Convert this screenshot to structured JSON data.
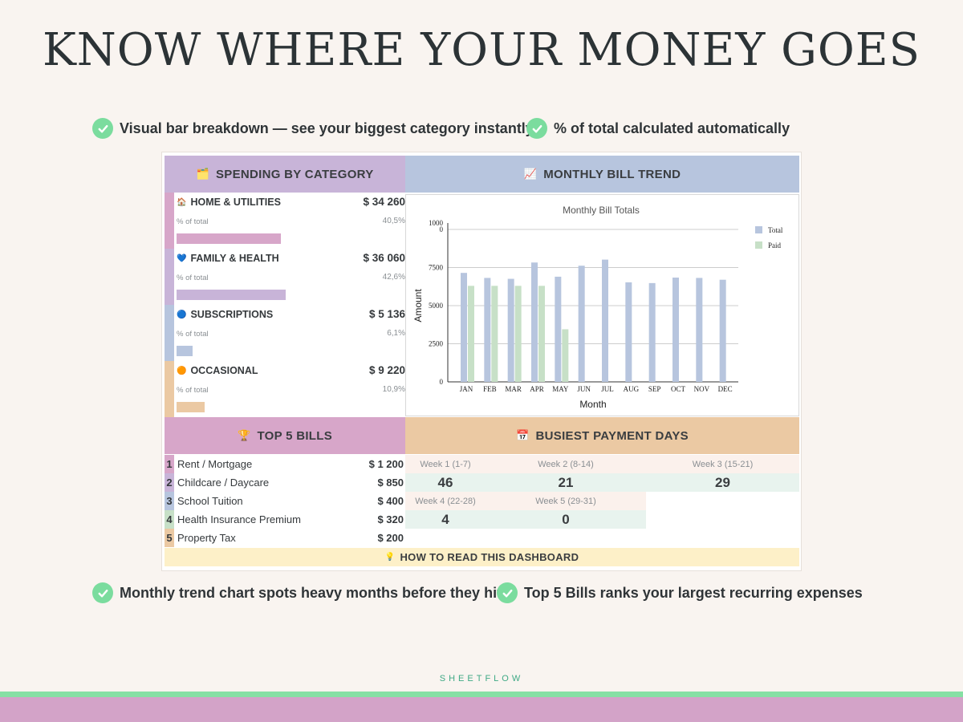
{
  "headline": "KNOW WHERE YOUR MONEY GOES",
  "features": {
    "top_left": "Visual bar breakdown — see your biggest category instantly",
    "top_right": "% of total calculated automatically",
    "bottom_left": "Monthly trend chart spots heavy months before they hit",
    "bottom_right": "Top 5 Bills ranks your largest recurring expenses"
  },
  "sections": {
    "spending": {
      "title": "SPENDING BY CATEGORY",
      "emoji": "🗂️",
      "color": "#c8b4d8"
    },
    "trend": {
      "title": "MONTHLY BILL TREND",
      "emoji": "📈",
      "color": "#b7c5de"
    },
    "top5": {
      "title": "TOP 5 BILLS",
      "emoji": "🏆",
      "color": "#d7a6c9"
    },
    "busiest": {
      "title": "BUSIEST PAYMENT DAYS",
      "emoji": "📅",
      "color": "#ebc9a3"
    }
  },
  "categories": [
    {
      "name": "HOME & UTILITIES",
      "emoji": "🏠",
      "amount": "$ 34 260",
      "pct_label": "% of total",
      "pct": "40,5%",
      "share": 40.5,
      "color": "#d7a6c9"
    },
    {
      "name": "FAMILY & HEALTH",
      "emoji": "💙",
      "amount": "$ 36 060",
      "pct_label": "% of total",
      "pct": "42,6%",
      "share": 42.6,
      "color": "#c8b4d8"
    },
    {
      "name": "SUBSCRIPTIONS",
      "emoji": "🔵",
      "amount": "$ 5 136",
      "pct_label": "% of total",
      "pct": "6,1%",
      "share": 6.1,
      "color": "#b7c5de"
    },
    {
      "name": "OCCASIONAL",
      "emoji": "🟠",
      "amount": "$ 9 220",
      "pct_label": "% of total",
      "pct": "10,9%",
      "share": 10.9,
      "color": "#ebc9a3"
    }
  ],
  "chart_data": {
    "type": "bar",
    "title": "Monthly Bill Totals",
    "xlabel": "Month",
    "ylabel": "Amount",
    "categories": [
      "JAN",
      "FEB",
      "MAR",
      "APR",
      "MAY",
      "JUN",
      "JUL",
      "AUG",
      "SEP",
      "OCT",
      "NOV",
      "DEC"
    ],
    "series": [
      {
        "name": "Total",
        "color": "#b7c5de",
        "values": [
          7150,
          6820,
          6760,
          7830,
          6900,
          7620,
          8020,
          6530,
          6480,
          6840,
          6820,
          6700
        ]
      },
      {
        "name": "Paid",
        "color": "#c7e0c7",
        "values": [
          6300,
          6300,
          6300,
          6300,
          3450,
          null,
          null,
          null,
          null,
          null,
          null,
          null
        ]
      }
    ],
    "yticks": [
      "0",
      "2500",
      "5000",
      "7500",
      "1000\n0"
    ],
    "ylim": [
      0,
      10000
    ],
    "grid": true,
    "legend": "top-right"
  },
  "top_bills": [
    {
      "rank": "1",
      "label": "Rent / Mortgage",
      "amount": "$ 1 200",
      "color": "#d7a6c9"
    },
    {
      "rank": "2",
      "label": "Childcare / Daycare",
      "amount": "$ 850",
      "color": "#c8b4d8"
    },
    {
      "rank": "3",
      "label": "School Tuition",
      "amount": "$ 400",
      "color": "#b7c5de"
    },
    {
      "rank": "4",
      "label": "Health Insurance Premium",
      "amount": "$ 320",
      "color": "#c7e0c7"
    },
    {
      "rank": "5",
      "label": "Property Tax",
      "amount": "$ 200",
      "color": "#ebc9a3"
    }
  ],
  "weeks": [
    {
      "label": "Week 1 (1-7)",
      "value": "46"
    },
    {
      "label": "Week 2 (8-14)",
      "value": "21"
    },
    {
      "label": "Week 3 (15-21)",
      "value": "29"
    },
    {
      "label": "Week 4 (22-28)",
      "value": "4"
    },
    {
      "label": "Week 5 (29-31)",
      "value": "0"
    }
  ],
  "howto": {
    "emoji": "💡",
    "label": "HOW TO READ THIS DASHBOARD"
  },
  "brand": "SHEETFLOW"
}
